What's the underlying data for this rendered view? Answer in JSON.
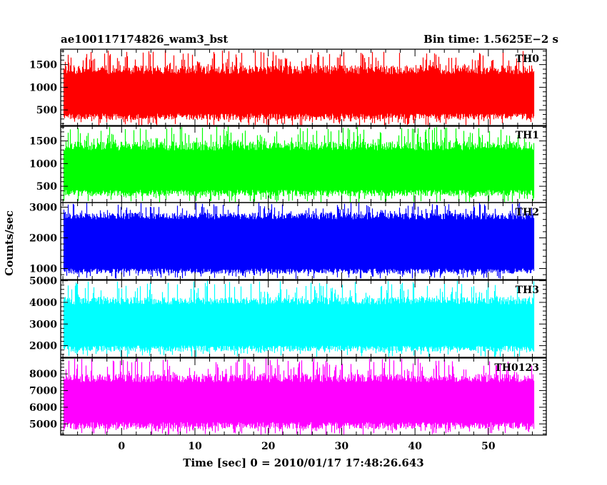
{
  "chart_data": {
    "type": "line",
    "title_left": "ae100117174826_wam3_bst",
    "title_right": "Bin time: 1.5625E−2 s",
    "xlabel": "Time [sec] 0 = 2010/01/17 17:48:26.643",
    "ylabel": "Counts/sec",
    "xlim": [
      -8.3,
      57.9
    ],
    "data_x_range": [
      -7.9,
      56.1
    ],
    "x_ticks": [
      0,
      10,
      20,
      30,
      40,
      50
    ],
    "x_tick_labels": [
      "0",
      "10",
      "20",
      "30",
      "40",
      "50"
    ],
    "grid": false,
    "panels": [
      {
        "name": "TH0",
        "color": "#ff0000",
        "ylim": [
          140,
          1840
        ],
        "y_ticks": [
          500,
          1000,
          1500
        ],
        "y_tick_labels": [
          "500",
          "1000",
          "1500"
        ],
        "band_low": [
          420,
          320
        ],
        "band_high": [
          1290,
          1490
        ],
        "spike_min": 150,
        "spike_max": 1820
      },
      {
        "name": "TH1",
        "color": "#00ff00",
        "ylim": [
          140,
          1840
        ],
        "y_ticks": [
          500,
          1000,
          1500
        ],
        "y_tick_labels": [
          "500",
          "1000",
          "1500"
        ],
        "band_low": [
          420,
          320
        ],
        "band_high": [
          1290,
          1490
        ],
        "spike_min": 150,
        "spike_max": 1820
      },
      {
        "name": "TH2",
        "color": "#0000ff",
        "ylim": [
          640,
          3150
        ],
        "y_ticks": [
          1000,
          2000,
          3000
        ],
        "y_tick_labels": [
          "1000",
          "2000",
          "3000"
        ],
        "band_low": [
          1000,
          880
        ],
        "band_high": [
          2600,
          2820
        ],
        "spike_min": 660,
        "spike_max": 3150
      },
      {
        "name": "TH3",
        "color": "#00ffff",
        "ylim": [
          1460,
          5020
        ],
        "y_ticks": [
          2000,
          3000,
          4000,
          5000
        ],
        "y_tick_labels": [
          "2000",
          "3000",
          "4000",
          "5000"
        ],
        "band_low": [
          2000,
          1800
        ],
        "band_high": [
          3900,
          4250
        ],
        "spike_min": 1480,
        "spike_max": 5000
      },
      {
        "name": "TH0123",
        "color": "#ff00ff",
        "ylim": [
          4330,
          8950
        ],
        "y_ticks": [
          5000,
          6000,
          7000,
          8000
        ],
        "y_tick_labels": [
          "5000",
          "6000",
          "7000",
          "8000"
        ],
        "band_low": [
          5100,
          4800
        ],
        "band_high": [
          7500,
          8000
        ],
        "spike_min": 4350,
        "spike_max": 8950
      }
    ]
  }
}
